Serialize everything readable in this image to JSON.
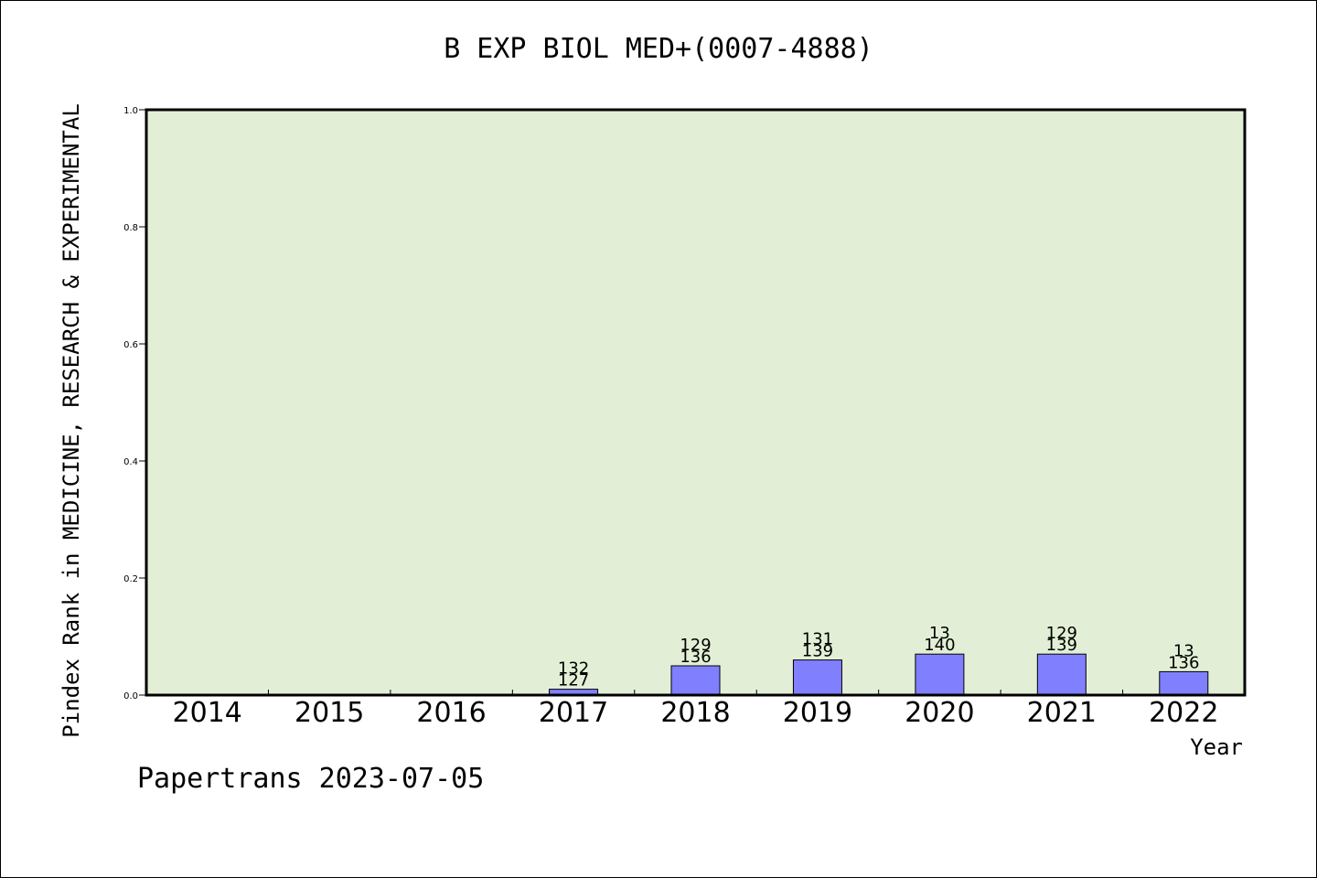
{
  "title": "B EXP BIOL MED+(0007-4888)",
  "footer": "Papertrans 2023-07-05",
  "colors": {
    "plot_bg": "#e2efd6",
    "bar": "#8080ff",
    "axis": "#000000"
  },
  "chart_data": {
    "type": "bar",
    "title": "B EXP BIOL MED+(0007-4888)",
    "xlabel": "Year",
    "ylabel": "Pindex Rank in MEDICINE, RESEARCH & EXPERIMENTAL",
    "ylim": [
      0,
      1.0
    ],
    "yticks": [
      "0.0",
      "0.2",
      "0.4",
      "0.6",
      "0.8",
      "1.0"
    ],
    "categories": [
      "2014",
      "2015",
      "2016",
      "2017",
      "2018",
      "2019",
      "2020",
      "2021",
      "2022"
    ],
    "values": [
      0,
      0,
      0,
      0.01,
      0.05,
      0.06,
      0.07,
      0.07,
      0.04
    ],
    "labels_top": [
      "",
      "",
      "",
      "132",
      "129",
      "131",
      "13",
      "129",
      "13"
    ],
    "labels_bottom": [
      "",
      "",
      "",
      "127",
      "136",
      "139",
      "140",
      "139",
      "136"
    ],
    "grid": false,
    "legend": "none"
  }
}
